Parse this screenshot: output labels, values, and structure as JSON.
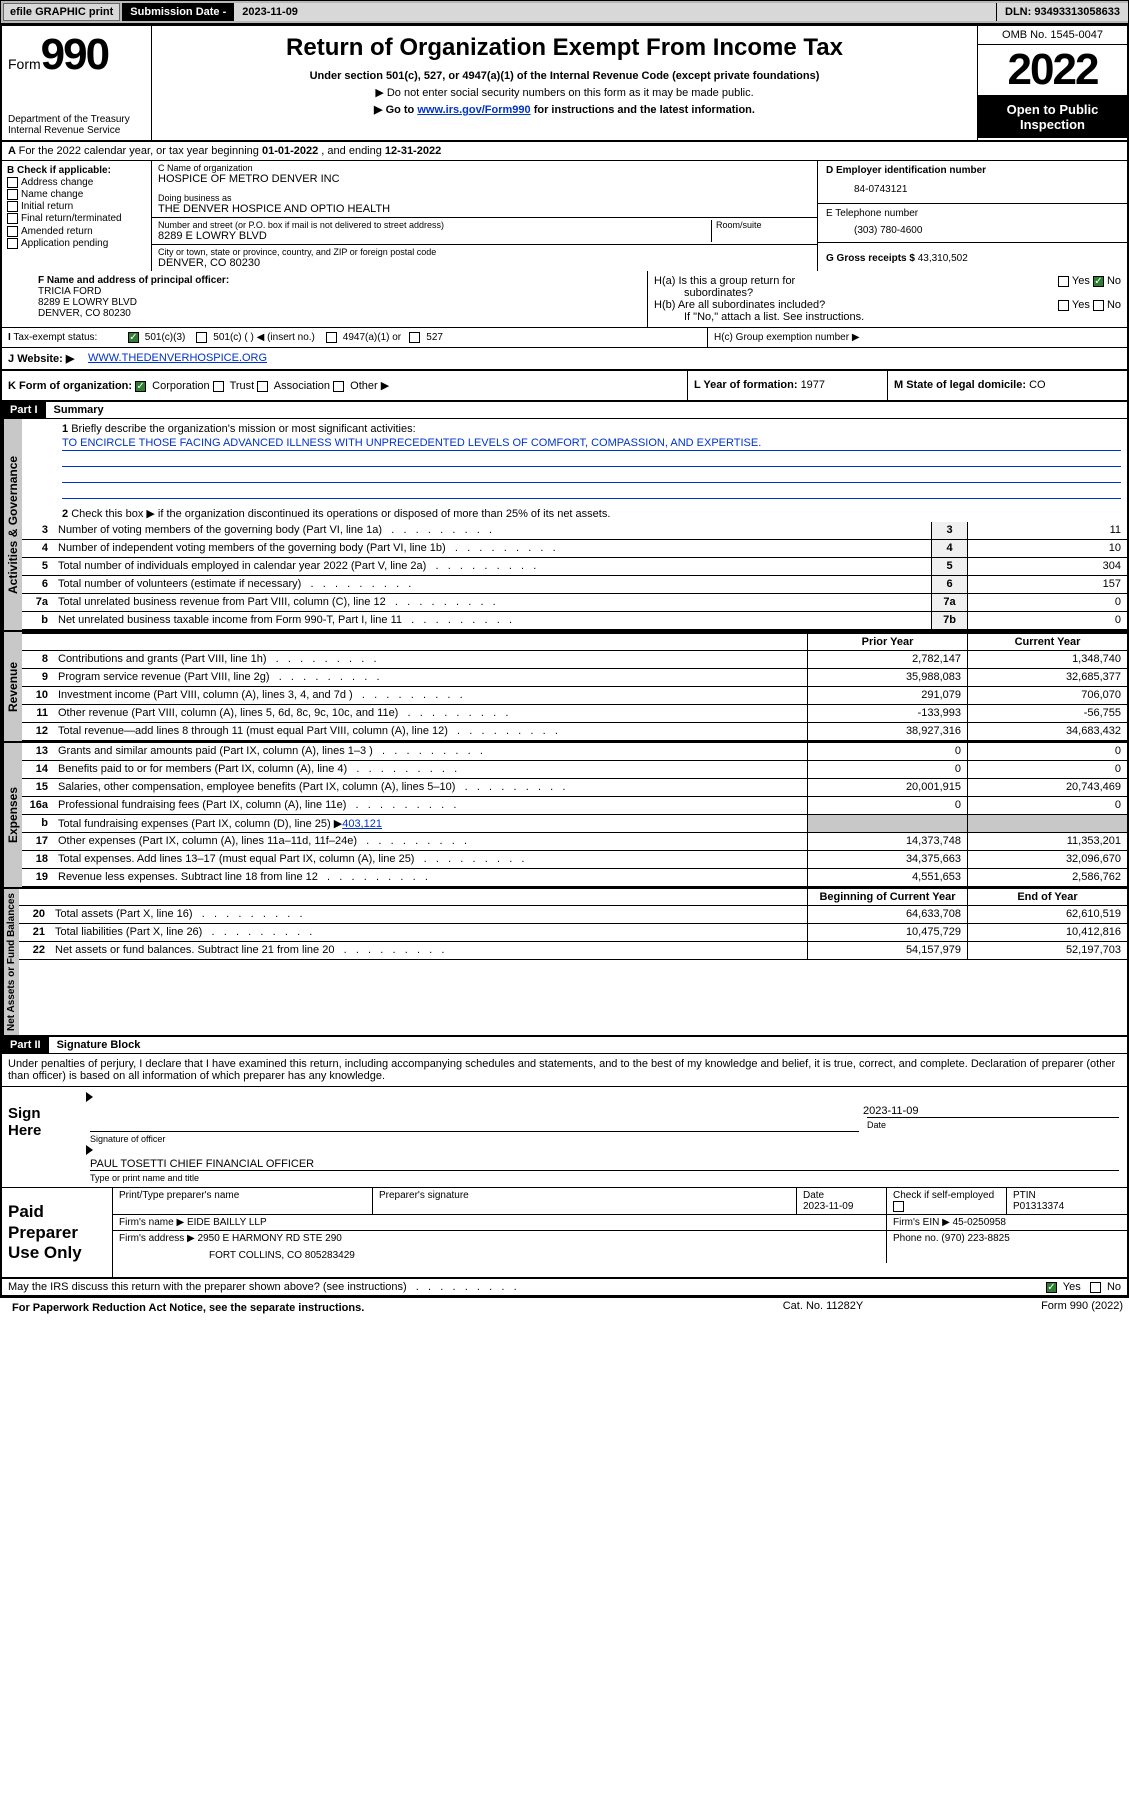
{
  "topbar": {
    "efile": "efile GRAPHIC print",
    "sub_label": "Submission Date - ",
    "sub_date": "2023-11-09",
    "dln_label": "DLN: ",
    "dln": "93493313058633"
  },
  "hdr": {
    "form_word": "Form",
    "form_num": "990",
    "dept": "Department of the Treasury\nInternal Revenue Service",
    "title": "Return of Organization Exempt From Income Tax",
    "sub": "Under section 501(c), 527, or 4947(a)(1) of the Internal Revenue Code (except private foundations)",
    "sub2": "▶ Do not enter social security numbers on this form as it may be made public.",
    "sub3_pre": "▶ Go to ",
    "sub3_link": "www.irs.gov/Form990",
    "sub3_post": " for instructions and the latest information.",
    "omb": "OMB No. 1545-0047",
    "year": "2022",
    "open": "Open to Public Inspection"
  },
  "calyear": {
    "pre": "For the 2022 calendar year, or tax year beginning ",
    "start": "01-01-2022",
    "mid": "  , and ending ",
    "end": "12-31-2022"
  },
  "colB": {
    "hdr": "B Check if applicable:",
    "addr_change": "Address change",
    "name_change": "Name change",
    "initial": "Initial return",
    "final": "Final return/terminated",
    "amended": "Amended return",
    "app_pending": "Application pending"
  },
  "colC": {
    "c_lab": "C Name of organization",
    "org": "HOSPICE OF METRO DENVER INC",
    "dba_lab": "Doing business as",
    "dba": "THE DENVER HOSPICE AND OPTIO HEALTH",
    "addr_lab": "Number and street (or P.O. box if mail is not delivered to street address)",
    "room_lab": "Room/suite",
    "addr": "8289 E LOWRY BLVD",
    "city_lab": "City or town, state or province, country, and ZIP or foreign postal code",
    "city": "DENVER, CO  80230"
  },
  "colD": {
    "d_lab": "D Employer identification number",
    "ein": "84-0743121",
    "e_lab": "E Telephone number",
    "phone": "(303) 780-4600",
    "g_lab": "G Gross receipts $ ",
    "gross": "43,310,502"
  },
  "secF": {
    "f_lab": "F Name and address of principal officer:",
    "name": "TRICIA FORD",
    "addr1": "8289 E LOWRY BLVD",
    "addr2": "DENVER, CO  80230"
  },
  "secH": {
    "ha": "H(a)  Is this a group return for",
    "ha2": "subordinates?",
    "hb": "H(b)  Are all subordinates included?",
    "hb_note": "If \"No,\" attach a list. See instructions.",
    "hc": "H(c)  Group exemption number ▶",
    "yes": "Yes",
    "no": "No"
  },
  "taxrow": {
    "i_lab": "Tax-exempt status:",
    "c3": "501(c)(3)",
    "c_blank": "501(c) (  ) ◀ (insert no.)",
    "a1": "4947(a)(1) or",
    "s527": "527"
  },
  "web": {
    "j_lab": "J",
    "label": "Website: ▶",
    "url": "WWW.THEDENVERHOSPICE.ORG"
  },
  "kform": {
    "lab": "K Form of organization:",
    "corp": "Corporation",
    "trust": "Trust",
    "assoc": "Association",
    "other": "Other ▶",
    "l_lab": "L Year of formation: ",
    "l_val": "1977",
    "m_lab": "M State of legal domicile: ",
    "m_val": "CO"
  },
  "part1": {
    "hdr": "Part I",
    "title": "Summary",
    "q1_lab": "Briefly describe the organization's mission or most significant activities:",
    "mission": "TO ENCIRCLE THOSE FACING ADVANCED ILLNESS WITH UNPRECEDENTED LEVELS OF COMFORT, COMPASSION, AND EXPERTISE.",
    "q2": "Check this box ▶       if the organization discontinued its operations or disposed of more than 25% of its net assets.",
    "prior": "Prior Year",
    "current": "Current Year",
    "beg": "Beginning of Current Year",
    "eoy": "End of Year"
  },
  "vtabs": {
    "gov": "Activities & Governance",
    "rev": "Revenue",
    "exp": "Expenses",
    "net": "Net Assets or Fund Balances"
  },
  "lines_gov": [
    {
      "n": "3",
      "d": "Number of voting members of the governing body (Part VI, line 1a)",
      "box": "3",
      "v": "11"
    },
    {
      "n": "4",
      "d": "Number of independent voting members of the governing body (Part VI, line 1b)",
      "box": "4",
      "v": "10"
    },
    {
      "n": "5",
      "d": "Total number of individuals employed in calendar year 2022 (Part V, line 2a)",
      "box": "5",
      "v": "304"
    },
    {
      "n": "6",
      "d": "Total number of volunteers (estimate if necessary)",
      "box": "6",
      "v": "157"
    },
    {
      "n": "7a",
      "d": "Total unrelated business revenue from Part VIII, column (C), line 12",
      "box": "7a",
      "v": "0"
    },
    {
      "n": "b",
      "d": "Net unrelated business taxable income from Form 990-T, Part I, line 11",
      "box": "7b",
      "v": "0"
    }
  ],
  "lines_rev": [
    {
      "n": "8",
      "d": "Contributions and grants (Part VIII, line 1h)",
      "p": "2,782,147",
      "c": "1,348,740"
    },
    {
      "n": "9",
      "d": "Program service revenue (Part VIII, line 2g)",
      "p": "35,988,083",
      "c": "32,685,377"
    },
    {
      "n": "10",
      "d": "Investment income (Part VIII, column (A), lines 3, 4, and 7d )",
      "p": "291,079",
      "c": "706,070"
    },
    {
      "n": "11",
      "d": "Other revenue (Part VIII, column (A), lines 5, 6d, 8c, 9c, 10c, and 11e)",
      "p": "-133,993",
      "c": "-56,755"
    },
    {
      "n": "12",
      "d": "Total revenue—add lines 8 through 11 (must equal Part VIII, column (A), line 12)",
      "p": "38,927,316",
      "c": "34,683,432"
    }
  ],
  "lines_exp": [
    {
      "n": "13",
      "d": "Grants and similar amounts paid (Part IX, column (A), lines 1–3 )",
      "p": "0",
      "c": "0"
    },
    {
      "n": "14",
      "d": "Benefits paid to or for members (Part IX, column (A), line 4)",
      "p": "0",
      "c": "0"
    },
    {
      "n": "15",
      "d": "Salaries, other compensation, employee benefits (Part IX, column (A), lines 5–10)",
      "p": "20,001,915",
      "c": "20,743,469"
    },
    {
      "n": "16a",
      "d": "Professional fundraising fees (Part IX, column (A), line 11e)",
      "p": "0",
      "c": "0"
    }
  ],
  "line16b": {
    "n": "b",
    "d_pre": "Total fundraising expenses (Part IX, column (D), line 25) ▶",
    "d_val": "403,121"
  },
  "lines_exp2": [
    {
      "n": "17",
      "d": "Other expenses (Part IX, column (A), lines 11a–11d, 11f–24e)",
      "p": "14,373,748",
      "c": "11,353,201"
    },
    {
      "n": "18",
      "d": "Total expenses. Add lines 13–17 (must equal Part IX, column (A), line 25)",
      "p": "34,375,663",
      "c": "32,096,670"
    },
    {
      "n": "19",
      "d": "Revenue less expenses. Subtract line 18 from line 12",
      "p": "4,551,653",
      "c": "2,586,762"
    }
  ],
  "lines_net": [
    {
      "n": "20",
      "d": "Total assets (Part X, line 16)",
      "p": "64,633,708",
      "c": "62,610,519"
    },
    {
      "n": "21",
      "d": "Total liabilities (Part X, line 26)",
      "p": "10,475,729",
      "c": "10,412,816"
    },
    {
      "n": "22",
      "d": "Net assets or fund balances. Subtract line 21 from line 20",
      "p": "54,157,979",
      "c": "52,197,703"
    }
  ],
  "part2": {
    "hdr": "Part II",
    "title": "Signature Block",
    "decl": "Under penalties of perjury, I declare that I have examined this return, including accompanying schedules and statements, and to the best of my knowledge and belief, it is true, correct, and complete. Declaration of preparer (other than officer) is based on all information of which preparer has any knowledge."
  },
  "sign": {
    "lab": "Sign Here",
    "sig_cap": "Signature of officer",
    "date_cap": "Date",
    "date": "2023-11-09",
    "name": "PAUL TOSETTI  CHIEF FINANCIAL OFFICER",
    "name_cap": "Type or print name and title"
  },
  "prep": {
    "lab": "Paid Preparer Use Only",
    "c1": "Print/Type preparer's name",
    "c2": "Preparer's signature",
    "c3": "Date",
    "c3v": "2023-11-09",
    "c4": "Check         if self-employed",
    "c5": "PTIN",
    "c5v": "P01313374",
    "firm_lab": "Firm's name    ▶ ",
    "firm": "EIDE BAILLY LLP",
    "ein_lab": "Firm's EIN ▶ ",
    "ein": "45-0250958",
    "addr_lab": "Firm's address ▶ ",
    "addr1": "2950 E HARMONY RD STE 290",
    "addr2": "FORT COLLINS, CO  805283429",
    "phone_lab": "Phone no. ",
    "phone": "(970) 223-8825"
  },
  "discuss": {
    "q": "May the IRS discuss this return with the preparer shown above? (see instructions)",
    "yes": "Yes",
    "no": "No"
  },
  "foot": {
    "paperwork": "For Paperwork Reduction Act Notice, see the separate instructions.",
    "cat": "Cat. No. 11282Y",
    "form": "Form 990 (2022)"
  }
}
